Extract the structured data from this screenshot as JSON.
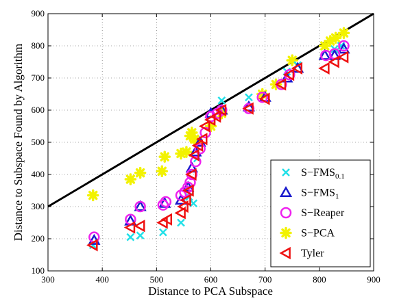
{
  "chart_data": {
    "type": "scatter",
    "title": "",
    "xlabel": "Distance to PCA Subspace",
    "ylabel": "Distance to Subspace Found by Algorithm",
    "xlim": [
      300,
      900
    ],
    "ylim": [
      100,
      900
    ],
    "xticks": [
      "300",
      "400",
      "500",
      "600",
      "700",
      "800",
      "900"
    ],
    "yticks": [
      "100",
      "200",
      "300",
      "400",
      "500",
      "600",
      "700",
      "800",
      "900"
    ],
    "grid": true,
    "legend_position": "bottom-right",
    "reference_line": {
      "description": "y = x",
      "color": "#000000"
    },
    "series": [
      {
        "name": "S−FMS",
        "name_subscript": "0.1",
        "marker": "x",
        "color": "#22e0e8",
        "points": [
          [
            383,
            180
          ],
          [
            452,
            205
          ],
          [
            470,
            210
          ],
          [
            512,
            220
          ],
          [
            545,
            250
          ],
          [
            560,
            330
          ],
          [
            568,
            310
          ],
          [
            575,
            450
          ],
          [
            620,
            630
          ],
          [
            670,
            640
          ],
          [
            740,
            720
          ],
          [
            760,
            740
          ],
          [
            828,
            790
          ],
          [
            840,
            800
          ]
        ]
      },
      {
        "name": "S−FMS",
        "name_subscript": "1",
        "marker": "triangle-up",
        "color": "#1a1acc",
        "points": [
          [
            385,
            195
          ],
          [
            452,
            255
          ],
          [
            470,
            300
          ],
          [
            515,
            310
          ],
          [
            545,
            320
          ],
          [
            558,
            360
          ],
          [
            565,
            420
          ],
          [
            572,
            470
          ],
          [
            580,
            500
          ],
          [
            600,
            590
          ],
          [
            620,
            600
          ],
          [
            670,
            610
          ],
          [
            700,
            640
          ],
          [
            740,
            700
          ],
          [
            760,
            730
          ],
          [
            810,
            770
          ],
          [
            828,
            770
          ],
          [
            845,
            790
          ]
        ]
      },
      {
        "name": "S−Reaper",
        "name_subscript": "",
        "marker": "circle",
        "color": "#ee22ee",
        "points": [
          [
            385,
            205
          ],
          [
            452,
            260
          ],
          [
            470,
            300
          ],
          [
            512,
            305
          ],
          [
            517,
            315
          ],
          [
            545,
            335
          ],
          [
            552,
            345
          ],
          [
            558,
            360
          ],
          [
            562,
            375
          ],
          [
            565,
            400
          ],
          [
            572,
            440
          ],
          [
            580,
            480
          ],
          [
            590,
            530
          ],
          [
            600,
            580
          ],
          [
            612,
            590
          ],
          [
            620,
            600
          ],
          [
            670,
            605
          ],
          [
            695,
            640
          ],
          [
            730,
            680
          ],
          [
            745,
            710
          ],
          [
            812,
            770
          ],
          [
            828,
            775
          ],
          [
            845,
            800
          ]
        ]
      },
      {
        "name": "S−PCA",
        "name_subscript": "",
        "marker": "star",
        "color": "#f2f200",
        "points": [
          [
            383,
            335
          ],
          [
            452,
            385
          ],
          [
            470,
            405
          ],
          [
            510,
            410
          ],
          [
            515,
            455
          ],
          [
            545,
            465
          ],
          [
            555,
            470
          ],
          [
            562,
            520
          ],
          [
            565,
            530
          ],
          [
            570,
            510
          ],
          [
            575,
            500
          ],
          [
            600,
            550
          ],
          [
            620,
            590
          ],
          [
            695,
            650
          ],
          [
            720,
            680
          ],
          [
            750,
            755
          ],
          [
            810,
            800
          ],
          [
            820,
            815
          ],
          [
            830,
            825
          ],
          [
            845,
            840
          ]
        ]
      },
      {
        "name": "Tyler",
        "name_subscript": "",
        "marker": "triangle-left",
        "color": "#ee1111",
        "points": [
          [
            383,
            180
          ],
          [
            452,
            235
          ],
          [
            470,
            240
          ],
          [
            512,
            250
          ],
          [
            520,
            260
          ],
          [
            545,
            280
          ],
          [
            550,
            300
          ],
          [
            555,
            320
          ],
          [
            560,
            350
          ],
          [
            565,
            400
          ],
          [
            570,
            460
          ],
          [
            577,
            490
          ],
          [
            585,
            510
          ],
          [
            590,
            550
          ],
          [
            600,
            570
          ],
          [
            610,
            580
          ],
          [
            620,
            600
          ],
          [
            670,
            605
          ],
          [
            700,
            635
          ],
          [
            730,
            680
          ],
          [
            745,
            710
          ],
          [
            760,
            730
          ],
          [
            810,
            730
          ],
          [
            828,
            750
          ],
          [
            845,
            765
          ]
        ]
      }
    ]
  }
}
